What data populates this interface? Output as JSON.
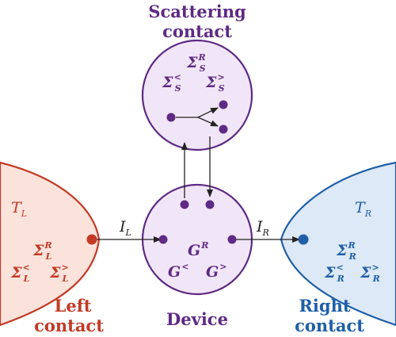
{
  "colors": {
    "purple": "#5e2a84",
    "purple_fill": "#f1e6f7",
    "red": "#c23a25",
    "red_fill": "#fbe3dc",
    "blue": "#1f5fa8",
    "blue_fill": "#dde9f6",
    "arrow": "#222222"
  },
  "scattering": {
    "title_line1": "Scattering",
    "title_line2": "contact",
    "sigma_r": {
      "base": "Σ",
      "sub": "S",
      "sup": "R"
    },
    "sigma_less": {
      "base": "Σ",
      "sub": "S",
      "sup": "<"
    },
    "sigma_greater": {
      "base": "Σ",
      "sub": "S",
      "sup": ">"
    }
  },
  "device": {
    "title": "Device",
    "g_r": {
      "base": "G",
      "sup": "R"
    },
    "g_less": {
      "base": "G",
      "sup": "<"
    },
    "g_greater": {
      "base": "G",
      "sup": ">"
    }
  },
  "left": {
    "title_line1": "Left",
    "title_line2": "contact",
    "temperature": {
      "base": "T",
      "sub": "L"
    },
    "current": {
      "base": "I",
      "sub": "L"
    },
    "sigma_r": {
      "base": "Σ",
      "sub": "L",
      "sup": "R"
    },
    "sigma_less": {
      "base": "Σ",
      "sub": "L",
      "sup": "<"
    },
    "sigma_greater": {
      "base": "Σ",
      "sub": "L",
      "sup": ">"
    }
  },
  "right": {
    "title_line1": "Right",
    "title_line2": "contact",
    "temperature": {
      "base": "T",
      "sub": "R"
    },
    "current": {
      "base": "I",
      "sub": "R"
    },
    "sigma_r": {
      "base": "Σ",
      "sub": "R",
      "sup": "R"
    },
    "sigma_less": {
      "base": "Σ",
      "sub": "R",
      "sup": "<"
    },
    "sigma_greater": {
      "base": "Σ",
      "sub": "R",
      "sup": ">"
    }
  }
}
